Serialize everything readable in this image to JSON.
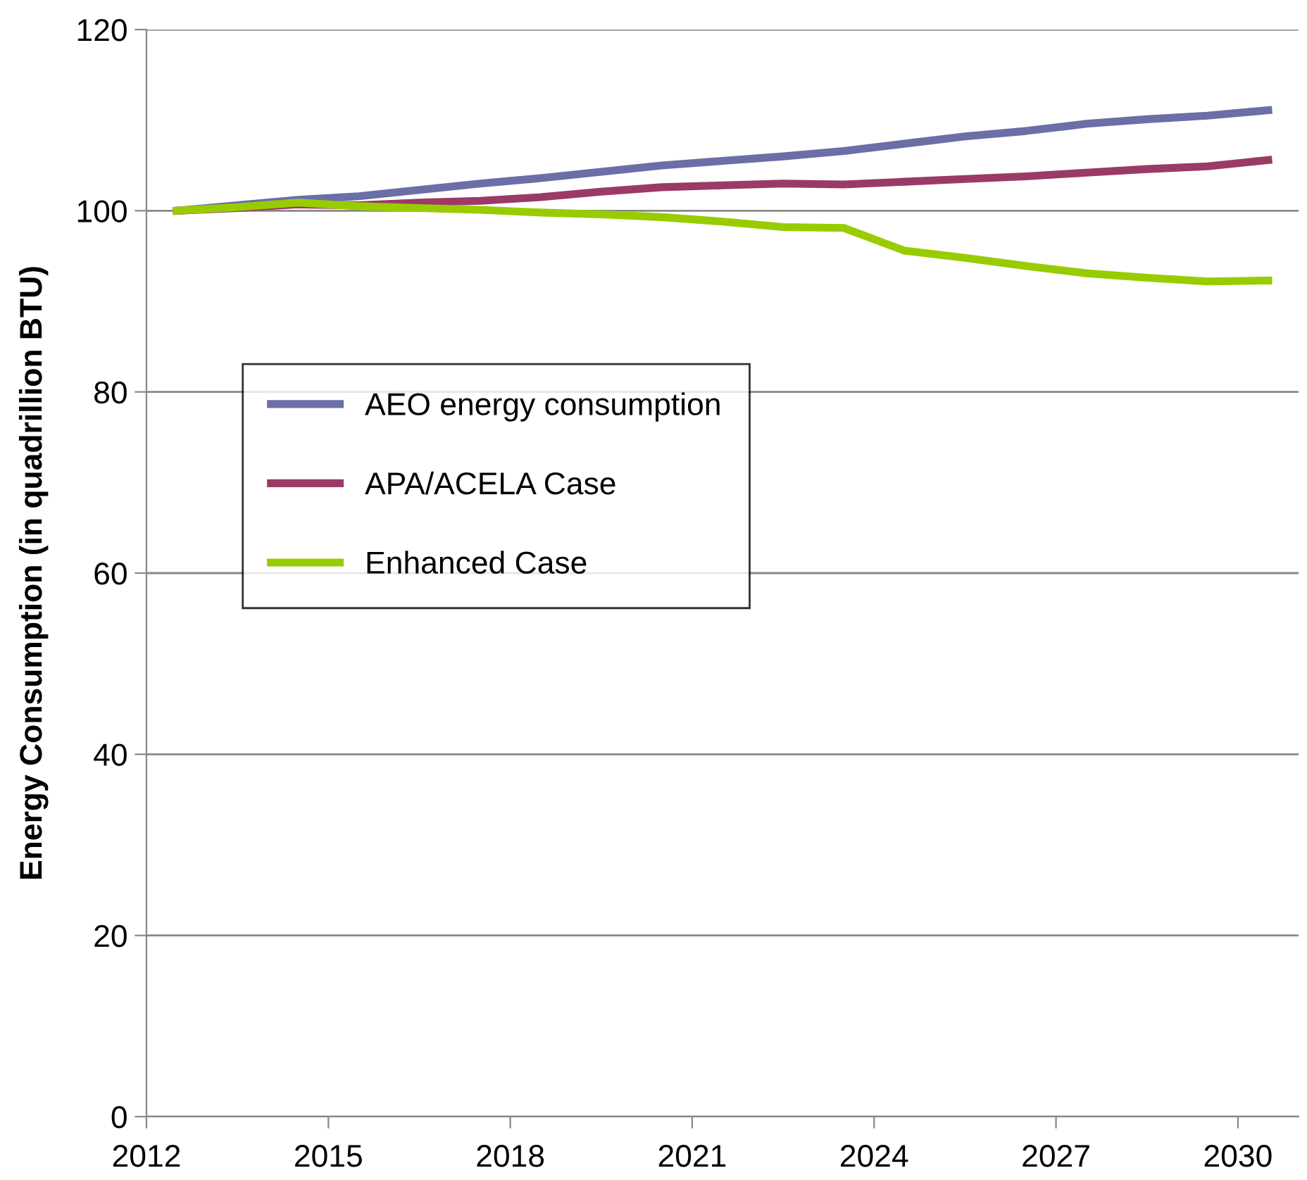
{
  "chart_data": {
    "type": "line",
    "ylabel": "Energy Consumption (in quadrillion BTU)",
    "x": [
      2012.5,
      2013.5,
      2014.5,
      2015.5,
      2016.5,
      2017.5,
      2018.5,
      2019.5,
      2020.5,
      2021.5,
      2022.5,
      2023.5,
      2024.5,
      2025.5,
      2026.5,
      2027.5,
      2028.5,
      2029.5,
      2030.5
    ],
    "series": [
      {
        "name": "AEO energy consumption",
        "color": "#6a6fa5",
        "values": [
          100,
          100.6,
          101.2,
          101.6,
          102.3,
          103,
          103.6,
          104.3,
          105,
          105.5,
          106,
          106.6,
          107.4,
          108.2,
          108.8,
          109.6,
          110.1,
          110.5,
          111.1
        ]
      },
      {
        "name": "APA/ACELA Case",
        "color": "#9b3a67",
        "values": [
          100,
          100.3,
          100.7,
          100.6,
          100.9,
          101.1,
          101.5,
          102.1,
          102.6,
          102.8,
          103,
          102.9,
          103.2,
          103.5,
          103.8,
          104.2,
          104.6,
          104.9,
          105.6
        ]
      },
      {
        "name": "Enhanced Case",
        "color": "#99cc00",
        "values": [
          100,
          100.4,
          100.9,
          100.5,
          100.3,
          100.1,
          99.8,
          99.6,
          99.3,
          98.8,
          98.2,
          98.1,
          95.6,
          94.8,
          93.9,
          93.1,
          92.6,
          92.2,
          92.3
        ]
      }
    ],
    "xlim": [
      2012,
      2031
    ],
    "xticks": [
      2012,
      2015,
      2018,
      2021,
      2024,
      2027,
      2030
    ],
    "ylim": [
      0,
      120
    ],
    "yticks": [
      0,
      20,
      40,
      60,
      80,
      100,
      120
    ],
    "grid": "y",
    "legend": "left",
    "marker": "none",
    "line_style": "solid"
  }
}
